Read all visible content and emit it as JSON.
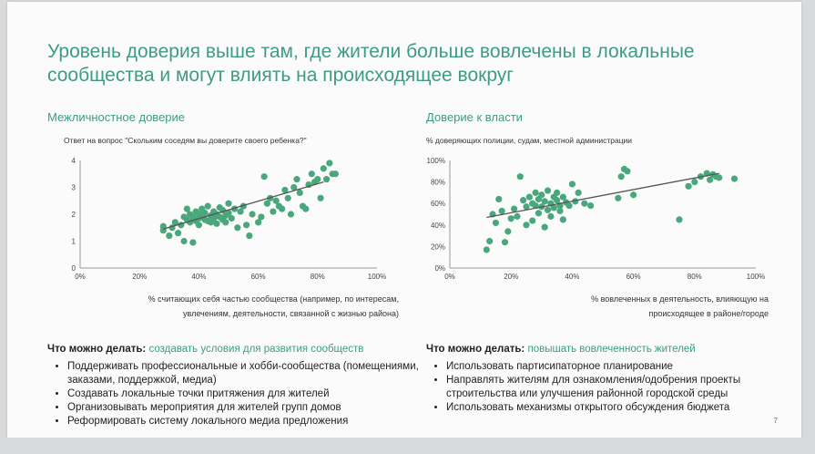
{
  "slide": {
    "title": "Уровень доверия выше там, где жители больше вовлечены в локальные сообщества и могут влиять на происходящее вокруг",
    "page_number": "7",
    "accent": "#3e9b84",
    "dot_color": "#4aa77b",
    "line_color": "#555555"
  },
  "left": {
    "subtitle": "Межличностное доверие",
    "question": "Ответ на вопрос \"Скольким соседям вы доверите своего ребенка?\"",
    "xcaption_line1": "% считающих себя частью сообщества (например, по интересам,",
    "xcaption_line2": "увлечениям, деятельности, связанной с жизнью района)",
    "actions_lead": "Что можно делать:",
    "actions_hl": "создавать условия для развития сообществ",
    "bullets": [
      "Поддерживать профессиональные и хобби-сообщества (помещениями, заказами, поддержкой, медиа)",
      "Создавать локальные точки притяжения для жителей",
      "Организовывать мероприятия для жителей групп домов",
      "Реформировать систему локального медиа предложения"
    ]
  },
  "right": {
    "subtitle": "Доверие к власти",
    "question": "% доверяющих полиции, судам, местной администрации",
    "xcaption_line1": "% вовлеченных в деятельность, влияющую на",
    "xcaption_line2": "происходящее в районе/городе",
    "actions_lead": "Что можно делать:",
    "actions_hl": "повышать вовлеченность жителей",
    "bullets": [
      "Использовать партисипаторное планирование",
      "Направлять жителям для ознакомления/одобрения проекты строительства или улучшения районной городской среды",
      "Использовать механизмы открытого обсуждения бюджета"
    ]
  },
  "chart_data": [
    {
      "type": "scatter",
      "title": "Межличностное доверие",
      "subtitle": "Ответ на вопрос \"Скольким соседям вы доверите своего ребенка?\"",
      "xlabel": "% считающих себя частью сообщества (например, по интересам, увлечениям, деятельности, связанной с жизнью района)",
      "ylabel": "",
      "xlim": [
        0,
        1
      ],
      "ylim": [
        0,
        4
      ],
      "x_ticks": [
        "0%",
        "20%",
        "40%",
        "60%",
        "80%",
        "100%"
      ],
      "y_ticks": [
        "0",
        "1",
        "2",
        "3",
        "4"
      ],
      "trend": [
        [
          0.28,
          1.45
        ],
        [
          0.82,
          3.2
        ]
      ],
      "points": [
        [
          0.28,
          1.4
        ],
        [
          0.28,
          1.55
        ],
        [
          0.3,
          1.2
        ],
        [
          0.31,
          1.5
        ],
        [
          0.32,
          1.7
        ],
        [
          0.33,
          1.3
        ],
        [
          0.34,
          1.6
        ],
        [
          0.35,
          1.9
        ],
        [
          0.35,
          1.0
        ],
        [
          0.36,
          2.2
        ],
        [
          0.36,
          1.8
        ],
        [
          0.37,
          2.0
        ],
        [
          0.37,
          1.7
        ],
        [
          0.38,
          1.9
        ],
        [
          0.38,
          0.95
        ],
        [
          0.39,
          2.1
        ],
        [
          0.39,
          1.75
        ],
        [
          0.4,
          2.0
        ],
        [
          0.4,
          1.85
        ],
        [
          0.4,
          1.6
        ],
        [
          0.41,
          2.2
        ],
        [
          0.41,
          1.9
        ],
        [
          0.42,
          1.8
        ],
        [
          0.42,
          2.05
        ],
        [
          0.43,
          1.75
        ],
        [
          0.43,
          2.3
        ],
        [
          0.44,
          1.95
        ],
        [
          0.44,
          1.7
        ],
        [
          0.45,
          2.1
        ],
        [
          0.45,
          1.85
        ],
        [
          0.46,
          2.0
        ],
        [
          0.46,
          1.65
        ],
        [
          0.47,
          2.25
        ],
        [
          0.47,
          1.9
        ],
        [
          0.48,
          1.8
        ],
        [
          0.48,
          2.15
        ],
        [
          0.49,
          1.95
        ],
        [
          0.49,
          1.7
        ],
        [
          0.5,
          2.05
        ],
        [
          0.5,
          2.4
        ],
        [
          0.51,
          1.85
        ],
        [
          0.52,
          2.2
        ],
        [
          0.53,
          1.5
        ],
        [
          0.54,
          2.1
        ],
        [
          0.55,
          2.3
        ],
        [
          0.56,
          1.6
        ],
        [
          0.57,
          1.2
        ],
        [
          0.58,
          2.0
        ],
        [
          0.6,
          1.7
        ],
        [
          0.61,
          1.9
        ],
        [
          0.62,
          3.4
        ],
        [
          0.63,
          2.4
        ],
        [
          0.64,
          2.6
        ],
        [
          0.65,
          2.1
        ],
        [
          0.66,
          2.5
        ],
        [
          0.67,
          2.3
        ],
        [
          0.68,
          2.2
        ],
        [
          0.69,
          2.9
        ],
        [
          0.7,
          2.6
        ],
        [
          0.71,
          2.0
        ],
        [
          0.72,
          3.0
        ],
        [
          0.73,
          3.3
        ],
        [
          0.74,
          2.8
        ],
        [
          0.75,
          2.3
        ],
        [
          0.76,
          2.2
        ],
        [
          0.77,
          3.1
        ],
        [
          0.78,
          3.5
        ],
        [
          0.79,
          3.2
        ],
        [
          0.8,
          3.3
        ],
        [
          0.81,
          2.6
        ],
        [
          0.82,
          3.7
        ],
        [
          0.83,
          3.3
        ],
        [
          0.84,
          3.9
        ],
        [
          0.85,
          3.5
        ],
        [
          0.86,
          3.5
        ]
      ]
    },
    {
      "type": "scatter",
      "title": "Доверие к власти",
      "subtitle": "% доверяющих полиции, судам, местной администрации",
      "xlabel": "% вовлеченных в деятельность, влияющую на происходящее в районе/городе",
      "ylabel": "",
      "xlim": [
        0,
        1
      ],
      "ylim": [
        0,
        1
      ],
      "x_ticks": [
        "0%",
        "20%",
        "40%",
        "60%",
        "80%",
        "100%"
      ],
      "y_ticks": [
        "0%",
        "20%",
        "40%",
        "60%",
        "80%",
        "100%"
      ],
      "trend": [
        [
          0.12,
          0.47
        ],
        [
          0.88,
          0.88
        ]
      ],
      "points": [
        [
          0.12,
          0.17
        ],
        [
          0.13,
          0.25
        ],
        [
          0.14,
          0.5
        ],
        [
          0.15,
          0.42
        ],
        [
          0.16,
          0.64
        ],
        [
          0.17,
          0.53
        ],
        [
          0.18,
          0.24
        ],
        [
          0.19,
          0.34
        ],
        [
          0.2,
          0.46
        ],
        [
          0.21,
          0.55
        ],
        [
          0.22,
          0.48
        ],
        [
          0.23,
          0.85
        ],
        [
          0.24,
          0.63
        ],
        [
          0.25,
          0.4
        ],
        [
          0.25,
          0.57
        ],
        [
          0.26,
          0.66
        ],
        [
          0.27,
          0.44
        ],
        [
          0.27,
          0.6
        ],
        [
          0.28,
          0.58
        ],
        [
          0.28,
          0.7
        ],
        [
          0.29,
          0.51
        ],
        [
          0.29,
          0.64
        ],
        [
          0.3,
          0.57
        ],
        [
          0.3,
          0.68
        ],
        [
          0.31,
          0.62
        ],
        [
          0.31,
          0.38
        ],
        [
          0.32,
          0.54
        ],
        [
          0.32,
          0.72
        ],
        [
          0.33,
          0.6
        ],
        [
          0.33,
          0.48
        ],
        [
          0.34,
          0.66
        ],
        [
          0.34,
          0.56
        ],
        [
          0.35,
          0.63
        ],
        [
          0.35,
          0.7
        ],
        [
          0.36,
          0.53
        ],
        [
          0.36,
          0.58
        ],
        [
          0.37,
          0.45
        ],
        [
          0.37,
          0.66
        ],
        [
          0.38,
          0.61
        ],
        [
          0.39,
          0.58
        ],
        [
          0.4,
          0.78
        ],
        [
          0.41,
          0.62
        ],
        [
          0.42,
          0.7
        ],
        [
          0.44,
          0.6
        ],
        [
          0.46,
          0.58
        ],
        [
          0.55,
          0.65
        ],
        [
          0.56,
          0.85
        ],
        [
          0.57,
          0.92
        ],
        [
          0.58,
          0.9
        ],
        [
          0.6,
          0.68
        ],
        [
          0.75,
          0.45
        ],
        [
          0.78,
          0.76
        ],
        [
          0.8,
          0.8
        ],
        [
          0.82,
          0.85
        ],
        [
          0.84,
          0.88
        ],
        [
          0.85,
          0.82
        ],
        [
          0.86,
          0.87
        ],
        [
          0.87,
          0.85
        ],
        [
          0.88,
          0.84
        ],
        [
          0.93,
          0.83
        ]
      ]
    }
  ]
}
